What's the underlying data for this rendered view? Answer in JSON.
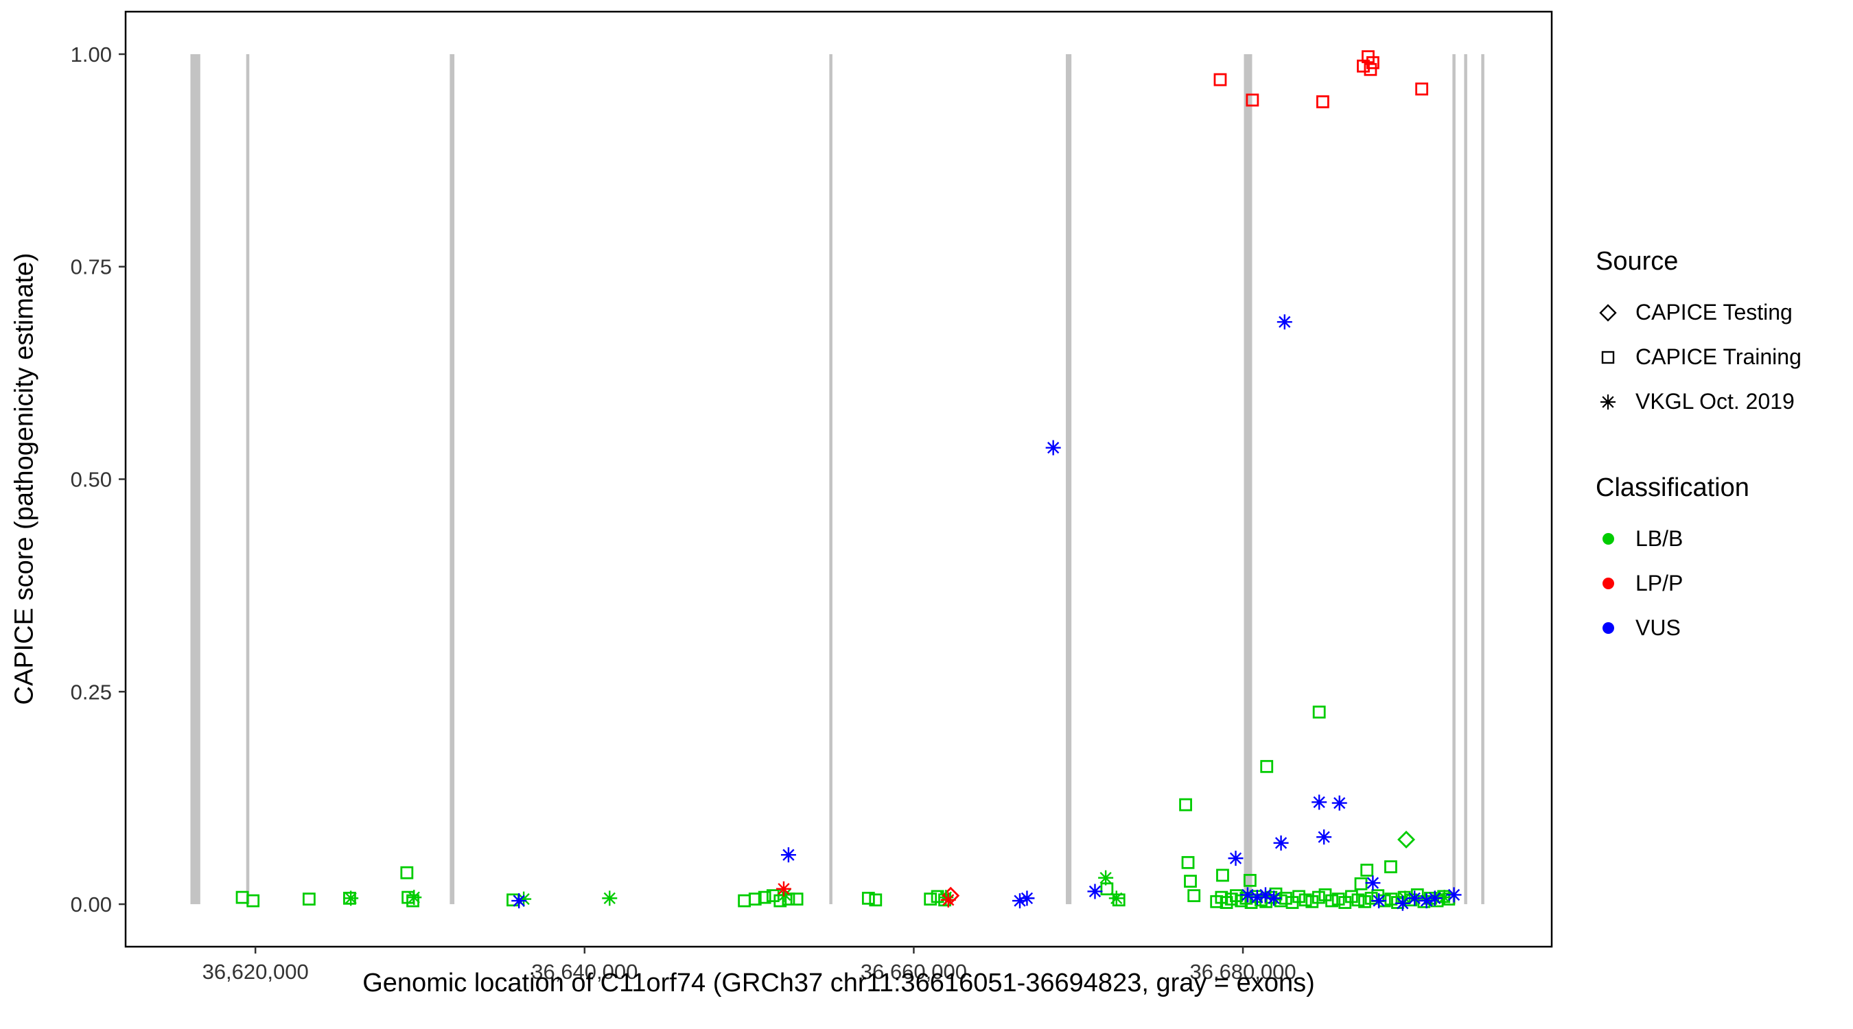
{
  "axes": {
    "x_label": "Genomic location of C11orf74 (GRCh37 chr11:36616051-36694823, gray = exons)",
    "y_label": "CAPICE score (pathogenicity estimate)"
  },
  "legend": {
    "source": {
      "title": "Source",
      "items": [
        {
          "label": "CAPICE Testing",
          "shape": "diamond"
        },
        {
          "label": "CAPICE Training",
          "shape": "square"
        },
        {
          "label": "VKGL Oct. 2019",
          "shape": "asterisk"
        }
      ]
    },
    "classification": {
      "title": "Classification",
      "items": [
        {
          "label": "LB/B",
          "color": "#00CC00"
        },
        {
          "label": "LP/P",
          "color": "#FF0000"
        },
        {
          "label": "VUS",
          "color": "#0000FF"
        }
      ]
    }
  },
  "chart_data": {
    "type": "scatter",
    "title": "",
    "xlabel": "Genomic location of C11orf74 (GRCh37 chr11:36616051-36694823, gray = exons)",
    "ylabel": "CAPICE score (pathogenicity estimate)",
    "xlim": [
      36612112,
      36698762
    ],
    "ylim": [
      -0.05,
      1.05
    ],
    "grid": false,
    "legend_position": "right",
    "x_ticks": [
      {
        "value": 36620000,
        "label": "36,620,000"
      },
      {
        "value": 36640000,
        "label": "36,640,000"
      },
      {
        "value": 36660000,
        "label": "36,660,000"
      },
      {
        "value": 36680000,
        "label": "36,680,000"
      }
    ],
    "y_ticks": [
      {
        "value": 0.0,
        "label": "0.00"
      },
      {
        "value": 0.25,
        "label": "0.25"
      },
      {
        "value": 0.5,
        "label": "0.50"
      },
      {
        "value": 0.75,
        "label": "0.75"
      },
      {
        "value": 1.0,
        "label": "1.00"
      }
    ],
    "exon_color": "#C3C3C3",
    "exons": [
      [
        36616051,
        36616650
      ],
      [
        36619440,
        36619630
      ],
      [
        36631810,
        36632090
      ],
      [
        36654870,
        36655050
      ],
      [
        36669240,
        36669580
      ],
      [
        36680060,
        36680560
      ],
      [
        36692730,
        36692880
      ],
      [
        36693440,
        36693590
      ],
      [
        36694480,
        36694630
      ]
    ],
    "colors": {
      "LB/B": "#00CC00",
      "LP/P": "#FF0000",
      "VUS": "#0000FF"
    },
    "shapes": {
      "CAPICE Testing": "diamond",
      "CAPICE Training": "square",
      "VKGL Oct. 2019": "asterisk"
    },
    "series": [
      {
        "source": "CAPICE Training",
        "classification": "LB/B",
        "points": [
          [
            36619203,
            0.008
          ],
          [
            36619855,
            0.004
          ],
          [
            36623261,
            0.006
          ],
          [
            36625724,
            0.007
          ],
          [
            36629202,
            0.037
          ],
          [
            36629275,
            0.008
          ],
          [
            36629565,
            0.004
          ],
          [
            36635651,
            0.005
          ],
          [
            36649709,
            0.004
          ],
          [
            36650361,
            0.006
          ],
          [
            36650941,
            0.008
          ],
          [
            36651448,
            0.01
          ],
          [
            36651883,
            0.004
          ],
          [
            36652390,
            0.006
          ],
          [
            36652897,
            0.006
          ],
          [
            36657245,
            0.007
          ],
          [
            36657680,
            0.005
          ],
          [
            36661012,
            0.006
          ],
          [
            36661447,
            0.009
          ],
          [
            36661882,
            0.005
          ],
          [
            36671736,
            0.018
          ],
          [
            36672461,
            0.005
          ],
          [
            36676518,
            0.117
          ],
          [
            36676663,
            0.049
          ],
          [
            36676808,
            0.027
          ],
          [
            36677025,
            0.01
          ],
          [
            36678766,
            0.034
          ],
          [
            36680431,
            0.028
          ],
          [
            36681446,
            0.162
          ],
          [
            36684634,
            0.226
          ],
          [
            36687170,
            0.024
          ],
          [
            36687532,
            0.04
          ],
          [
            36688981,
            0.044
          ],
          [
            36678400,
            0.003
          ],
          [
            36678700,
            0.008
          ],
          [
            36679000,
            0.002
          ],
          [
            36679300,
            0.006
          ],
          [
            36679600,
            0.01
          ],
          [
            36679900,
            0.004
          ],
          [
            36680200,
            0.007
          ],
          [
            36680500,
            0.002
          ],
          [
            36680800,
            0.009
          ],
          [
            36681100,
            0.005
          ],
          [
            36681400,
            0.003
          ],
          [
            36681700,
            0.008
          ],
          [
            36682000,
            0.012
          ],
          [
            36682300,
            0.004
          ],
          [
            36682600,
            0.007
          ],
          [
            36683000,
            0.002
          ],
          [
            36683400,
            0.009
          ],
          [
            36683800,
            0.005
          ],
          [
            36684200,
            0.003
          ],
          [
            36684600,
            0.008
          ],
          [
            36685000,
            0.011
          ],
          [
            36685400,
            0.004
          ],
          [
            36685800,
            0.006
          ],
          [
            36686200,
            0.002
          ],
          [
            36686600,
            0.009
          ],
          [
            36687000,
            0.005
          ],
          [
            36687400,
            0.003
          ],
          [
            36687800,
            0.007
          ],
          [
            36688200,
            0.01
          ],
          [
            36688600,
            0.004
          ],
          [
            36689000,
            0.006
          ],
          [
            36689400,
            0.002
          ],
          [
            36689800,
            0.008
          ],
          [
            36690200,
            0.005
          ],
          [
            36690600,
            0.011
          ],
          [
            36691000,
            0.003
          ],
          [
            36691400,
            0.007
          ],
          [
            36691800,
            0.004
          ],
          [
            36692200,
            0.009
          ],
          [
            36692500,
            0.006
          ]
        ]
      },
      {
        "source": "CAPICE Training",
        "classification": "LP/P",
        "points": [
          [
            36678620,
            0.97
          ],
          [
            36680576,
            0.946
          ],
          [
            36684851,
            0.944
          ],
          [
            36687315,
            0.986
          ],
          [
            36687605,
            0.997
          ],
          [
            36687750,
            0.982
          ],
          [
            36687895,
            0.99
          ],
          [
            36690865,
            0.959
          ]
        ]
      },
      {
        "source": "CAPICE Testing",
        "classification": "LB/B",
        "points": [
          [
            36689923,
            0.076
          ]
        ]
      },
      {
        "source": "CAPICE Testing",
        "classification": "LP/P",
        "points": [
          [
            36662244,
            0.01
          ]
        ]
      },
      {
        "source": "VKGL Oct. 2019",
        "classification": "LB/B",
        "points": [
          [
            36625796,
            0.007
          ],
          [
            36629637,
            0.008
          ],
          [
            36636303,
            0.006
          ],
          [
            36641521,
            0.007
          ],
          [
            36652173,
            0.011
          ],
          [
            36661954,
            0.008
          ],
          [
            36671663,
            0.031
          ],
          [
            36672316,
            0.007
          ],
          [
            36689851,
            0.007
          ],
          [
            36692242,
            0.008
          ]
        ]
      },
      {
        "source": "VKGL Oct. 2019",
        "classification": "LP/P",
        "points": [
          [
            36652100,
            0.018
          ],
          [
            36662099,
            0.005
          ]
        ]
      },
      {
        "source": "VKGL Oct. 2019",
        "classification": "VUS",
        "points": [
          [
            36636014,
            0.004
          ],
          [
            36652390,
            0.058
          ],
          [
            36666446,
            0.004
          ],
          [
            36666881,
            0.007
          ],
          [
            36668475,
            0.537
          ],
          [
            36671011,
            0.015
          ],
          [
            36679561,
            0.054
          ],
          [
            36680286,
            0.011
          ],
          [
            36680866,
            0.008
          ],
          [
            36681373,
            0.011
          ],
          [
            36681880,
            0.007
          ],
          [
            36682315,
            0.072
          ],
          [
            36682533,
            0.685
          ],
          [
            36684634,
            0.12
          ],
          [
            36684924,
            0.079
          ],
          [
            36685866,
            0.119
          ],
          [
            36687895,
            0.025
          ],
          [
            36688257,
            0.004
          ],
          [
            36689706,
            0.001
          ],
          [
            36690431,
            0.007
          ],
          [
            36691155,
            0.004
          ],
          [
            36691662,
            0.007
          ],
          [
            36692822,
            0.011
          ]
        ]
      }
    ]
  }
}
